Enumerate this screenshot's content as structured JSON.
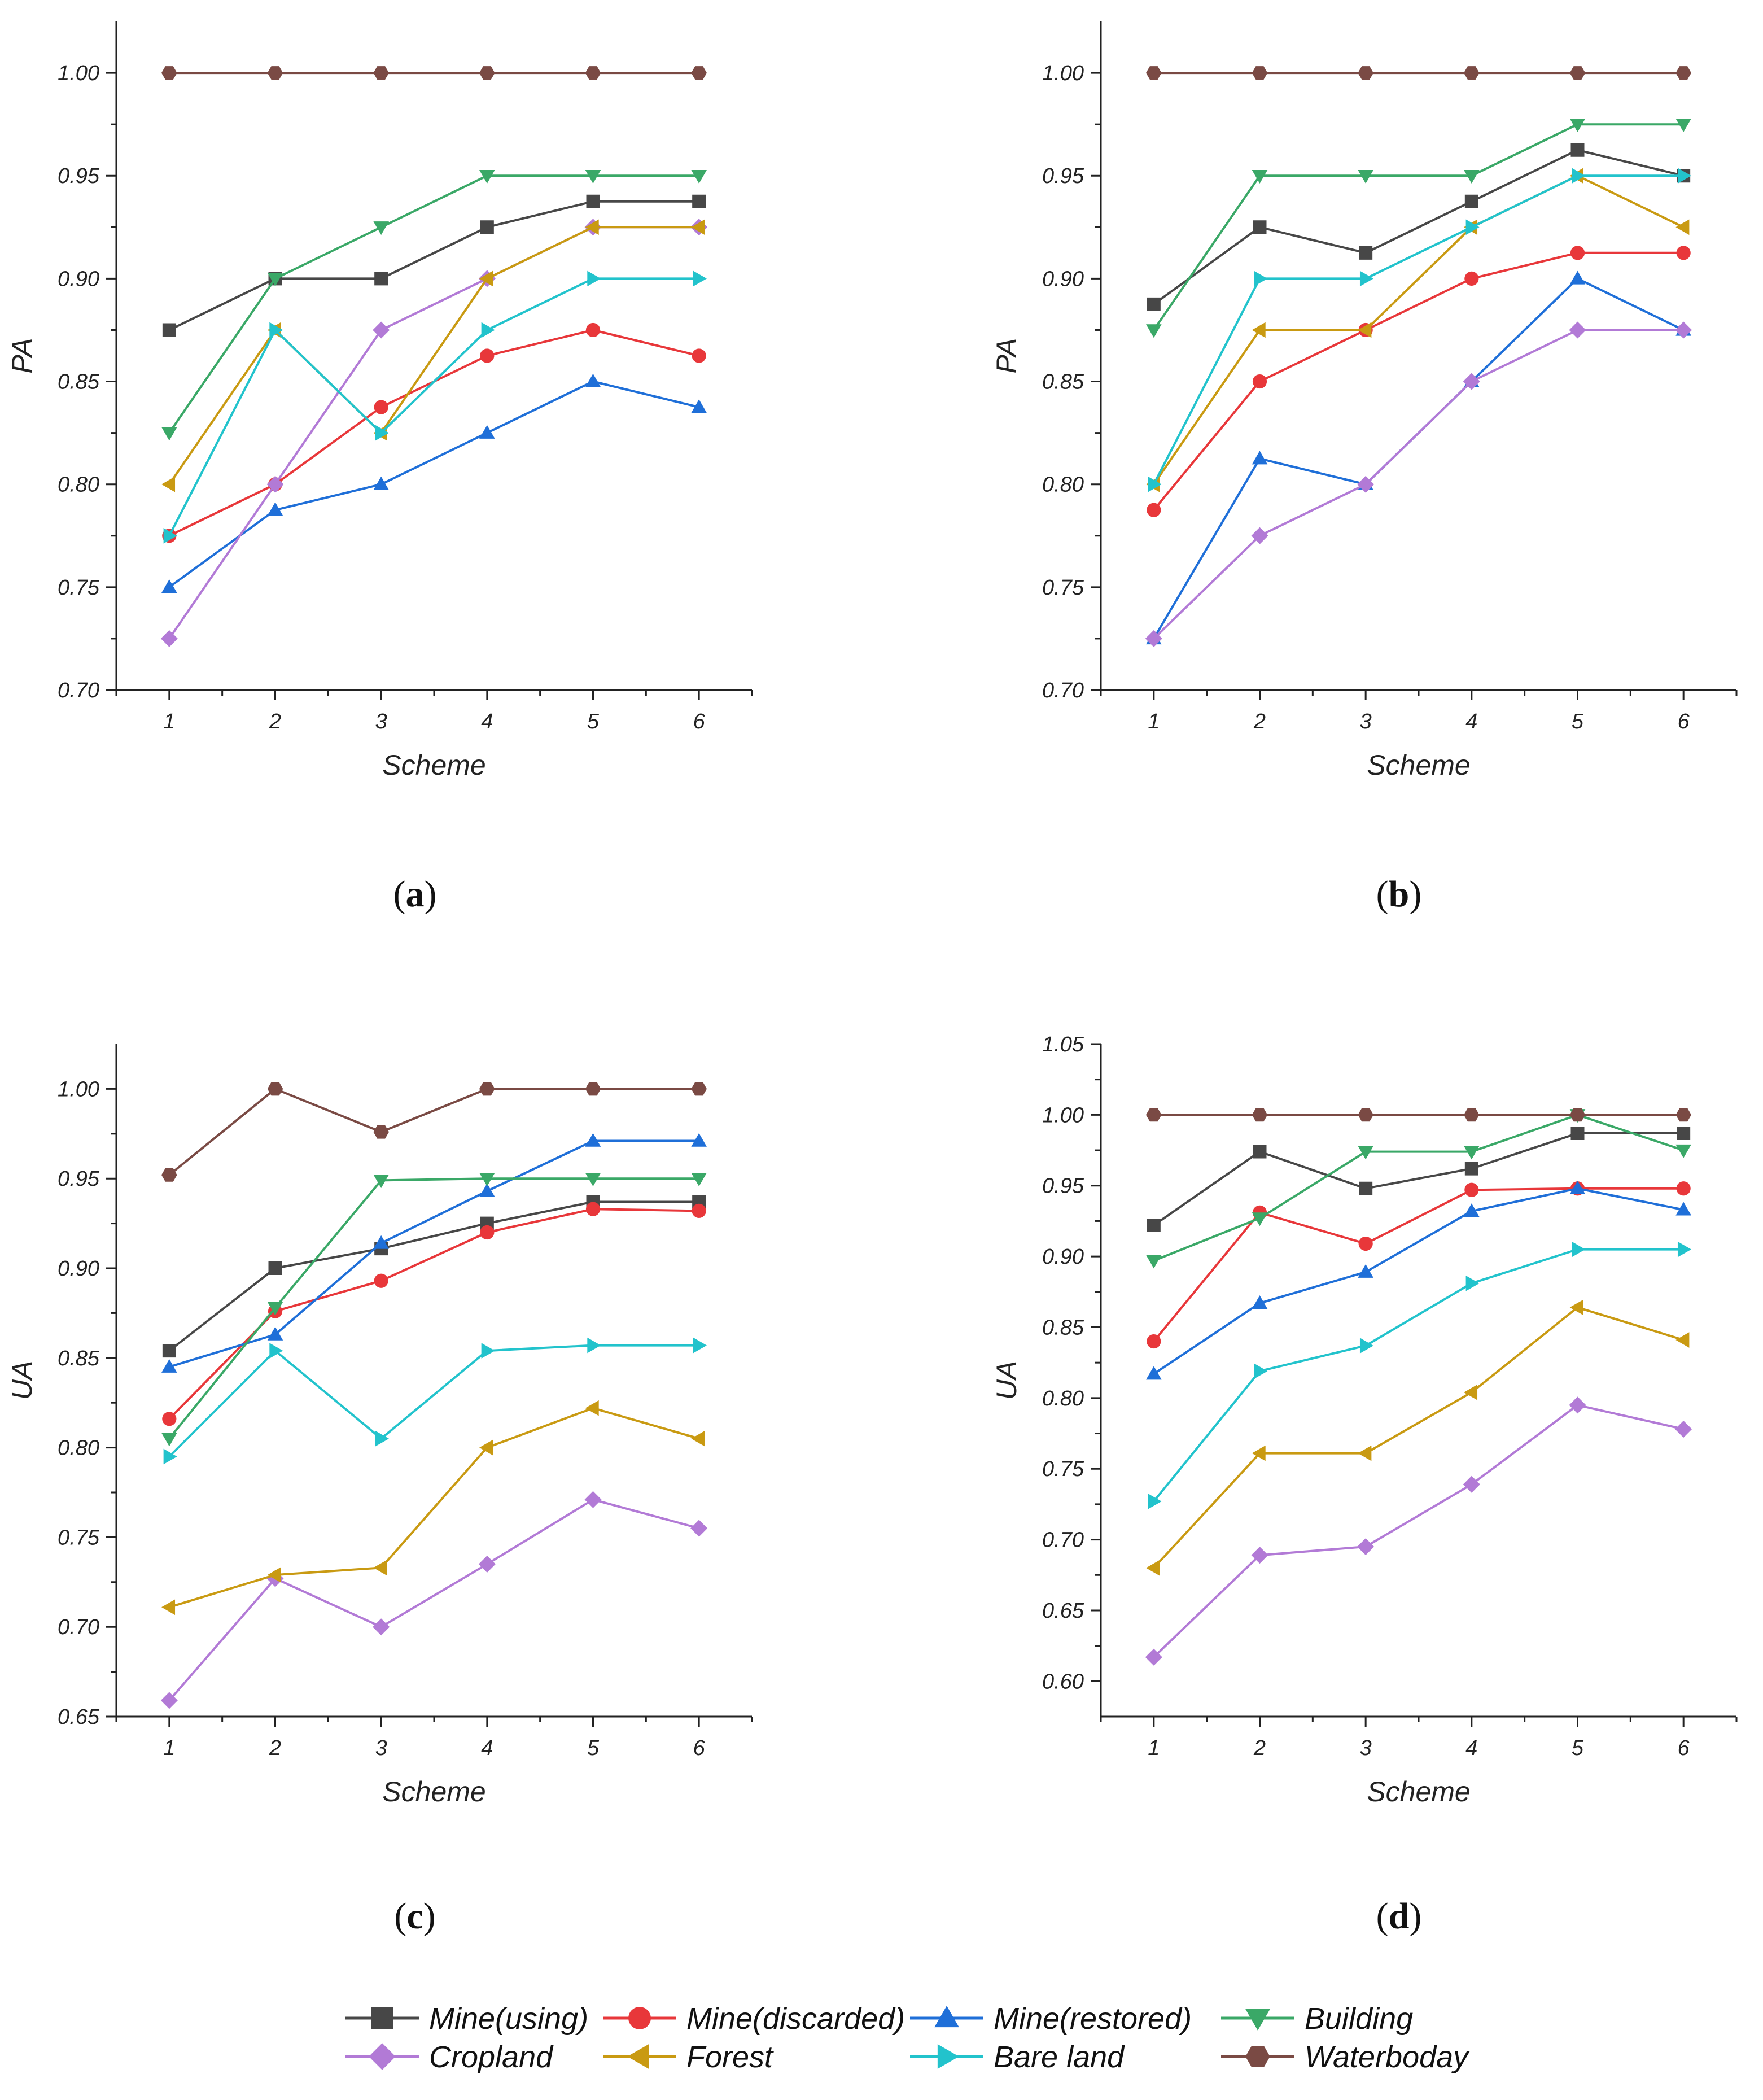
{
  "chart_data": [
    {
      "type": "line",
      "panel": "a",
      "xlabel": "Scheme",
      "ylabel": "PA",
      "x": [
        1,
        2,
        3,
        4,
        5,
        6
      ],
      "ylim": [
        0.7,
        1.025
      ],
      "yticks": [
        "0.70",
        "0.75",
        "0.80",
        "0.85",
        "0.90",
        "0.95",
        "1.00"
      ],
      "series": [
        {
          "name": "Mine(using)",
          "values": [
            0.875,
            0.9,
            0.9,
            0.925,
            0.9375,
            0.9375
          ]
        },
        {
          "name": "Mine(discarded)",
          "values": [
            0.775,
            0.8,
            0.8375,
            0.8625,
            0.875,
            0.8625
          ]
        },
        {
          "name": "Mine(restored)",
          "values": [
            0.75,
            0.7875,
            0.8,
            0.825,
            0.85,
            0.8375
          ]
        },
        {
          "name": "Building",
          "values": [
            0.825,
            0.9,
            0.925,
            0.95,
            0.95,
            0.95
          ]
        },
        {
          "name": "Cropland",
          "values": [
            0.725,
            0.8,
            0.875,
            0.9,
            0.925,
            0.925
          ]
        },
        {
          "name": "Forest",
          "values": [
            0.8,
            0.875,
            0.825,
            0.9,
            0.925,
            0.925
          ]
        },
        {
          "name": "Bare land",
          "values": [
            0.775,
            0.875,
            0.825,
            0.875,
            0.9,
            0.9
          ]
        },
        {
          "name": "Waterboday",
          "values": [
            1.0,
            1.0,
            1.0,
            1.0,
            1.0,
            1.0
          ]
        }
      ]
    },
    {
      "type": "line",
      "panel": "b",
      "xlabel": "Scheme",
      "ylabel": "PA",
      "x": [
        1,
        2,
        3,
        4,
        5,
        6
      ],
      "ylim": [
        0.7,
        1.025
      ],
      "yticks": [
        "0.70",
        "0.75",
        "0.80",
        "0.85",
        "0.90",
        "0.95",
        "1.00"
      ],
      "series": [
        {
          "name": "Mine(using)",
          "values": [
            0.8875,
            0.925,
            0.9125,
            0.9375,
            0.9625,
            0.95
          ]
        },
        {
          "name": "Mine(discarded)",
          "values": [
            0.7875,
            0.85,
            0.875,
            0.9,
            0.9125,
            0.9125
          ]
        },
        {
          "name": "Mine(restored)",
          "values": [
            0.725,
            0.8125,
            0.8,
            0.85,
            0.9,
            0.875
          ]
        },
        {
          "name": "Building",
          "values": [
            0.875,
            0.95,
            0.95,
            0.95,
            0.975,
            0.975
          ]
        },
        {
          "name": "Cropland",
          "values": [
            0.725,
            0.775,
            0.8,
            0.85,
            0.875,
            0.875
          ]
        },
        {
          "name": "Forest",
          "values": [
            0.8,
            0.875,
            0.875,
            0.925,
            0.95,
            0.925
          ]
        },
        {
          "name": "Bare land",
          "values": [
            0.8,
            0.9,
            0.9,
            0.925,
            0.95,
            0.95
          ]
        },
        {
          "name": "Waterboday",
          "values": [
            1.0,
            1.0,
            1.0,
            1.0,
            1.0,
            1.0
          ]
        }
      ]
    },
    {
      "type": "line",
      "panel": "c",
      "xlabel": "Scheme",
      "ylabel": "UA",
      "x": [
        1,
        2,
        3,
        4,
        5,
        6
      ],
      "ylim": [
        0.65,
        1.025
      ],
      "yticks": [
        "0.65",
        "0.70",
        "0.75",
        "0.80",
        "0.85",
        "0.90",
        "0.95",
        "1.00"
      ],
      "series": [
        {
          "name": "Mine(using)",
          "values": [
            0.854,
            0.9,
            0.911,
            0.925,
            0.937,
            0.937
          ]
        },
        {
          "name": "Mine(discarded)",
          "values": [
            0.816,
            0.876,
            0.893,
            0.92,
            0.933,
            0.932
          ]
        },
        {
          "name": "Mine(restored)",
          "values": [
            0.845,
            0.863,
            0.914,
            0.943,
            0.971,
            0.971
          ]
        },
        {
          "name": "Building",
          "values": [
            0.805,
            0.878,
            0.949,
            0.95,
            0.95,
            0.95
          ]
        },
        {
          "name": "Cropland",
          "values": [
            0.659,
            0.727,
            0.7,
            0.735,
            0.771,
            0.755
          ]
        },
        {
          "name": "Forest",
          "values": [
            0.711,
            0.729,
            0.733,
            0.8,
            0.822,
            0.805
          ]
        },
        {
          "name": "Bare land",
          "values": [
            0.795,
            0.854,
            0.805,
            0.854,
            0.857,
            0.857
          ]
        },
        {
          "name": "Waterboday",
          "values": [
            0.952,
            1.0,
            0.976,
            1.0,
            1.0,
            1.0
          ]
        }
      ]
    },
    {
      "type": "line",
      "panel": "d",
      "xlabel": "Scheme",
      "ylabel": "UA",
      "x": [
        1,
        2,
        3,
        4,
        5,
        6
      ],
      "ylim": [
        0.575,
        1.05
      ],
      "yticks": [
        "0.60",
        "0.65",
        "0.70",
        "0.75",
        "0.80",
        "0.85",
        "0.90",
        "0.95",
        "1.00",
        "1.05"
      ],
      "series": [
        {
          "name": "Mine(using)",
          "values": [
            0.922,
            0.974,
            0.948,
            0.962,
            0.987,
            0.987
          ]
        },
        {
          "name": "Mine(discarded)",
          "values": [
            0.84,
            0.931,
            0.909,
            0.947,
            0.948,
            0.948
          ]
        },
        {
          "name": "Mine(restored)",
          "values": [
            0.817,
            0.867,
            0.889,
            0.932,
            0.948,
            0.933
          ]
        },
        {
          "name": "Building",
          "values": [
            0.897,
            0.927,
            0.974,
            0.974,
            1.0,
            0.975
          ]
        },
        {
          "name": "Cropland",
          "values": [
            0.617,
            0.689,
            0.695,
            0.739,
            0.795,
            0.778
          ]
        },
        {
          "name": "Forest",
          "values": [
            0.68,
            0.761,
            0.761,
            0.804,
            0.864,
            0.841
          ]
        },
        {
          "name": "Bare land",
          "values": [
            0.727,
            0.819,
            0.837,
            0.881,
            0.905,
            0.905
          ]
        },
        {
          "name": "Waterboday",
          "values": [
            1.0,
            1.0,
            1.0,
            1.0,
            1.0,
            1.0
          ]
        }
      ]
    }
  ],
  "panels": [
    {
      "label_open": "(",
      "label_letter": "a",
      "label_close": ")"
    },
    {
      "label_open": "(",
      "label_letter": "b",
      "label_close": ")"
    },
    {
      "label_open": "(",
      "label_letter": "c",
      "label_close": ")"
    },
    {
      "label_open": "(",
      "label_letter": "d",
      "label_close": ")"
    }
  ],
  "legend": {
    "placement": "bottom",
    "items": [
      {
        "name": "Mine(using)",
        "color": "#474747",
        "marker": "square"
      },
      {
        "name": "Mine(discarded)",
        "color": "#e8373a",
        "marker": "circle"
      },
      {
        "name": "Mine(restored)",
        "color": "#1f6fd8",
        "marker": "triangle-up"
      },
      {
        "name": "Building",
        "color": "#3aa867",
        "marker": "triangle-down"
      },
      {
        "name": "Cropland",
        "color": "#b27ad6",
        "marker": "diamond"
      },
      {
        "name": "Forest",
        "color": "#c99a12",
        "marker": "triangle-left"
      },
      {
        "name": "Bare land",
        "color": "#22c3cc",
        "marker": "triangle-right"
      },
      {
        "name": "Waterboday",
        "color": "#7a4a44",
        "marker": "hexagon"
      }
    ]
  }
}
